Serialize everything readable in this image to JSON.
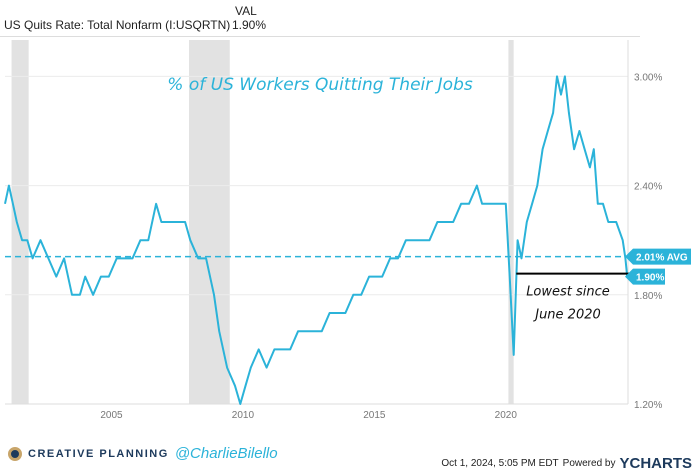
{
  "header": {
    "series_name": "US Quits Rate: Total Nonfarm (I:USQRTN)",
    "val_label": "VAL",
    "val": "1.90%"
  },
  "chart_data": {
    "type": "line",
    "title": "% of US Workers Quitting Their Jobs",
    "xlabel": "",
    "ylabel": "",
    "xlim": [
      2000.95,
      2024.65
    ],
    "ylim": [
      1.2,
      3.2
    ],
    "x_ticks": [
      2005,
      2010,
      2015,
      2020
    ],
    "x_tick_labels": [
      "2005",
      "2010",
      "2015",
      "2020"
    ],
    "y_ticks": [
      1.2,
      1.8,
      2.4,
      3.0
    ],
    "y_tick_labels": [
      "1.20%",
      "1.80%",
      "2.40%",
      "3.00%"
    ],
    "recessions": [
      [
        2001.2,
        2001.85
      ],
      [
        2007.95,
        2009.5
      ],
      [
        2020.1,
        2020.3
      ]
    ],
    "average": {
      "value": 2.01,
      "label": "2.01% AVG"
    },
    "last": {
      "value": 1.9,
      "label": "1.90%"
    },
    "annotation": {
      "line1": "Lowest since",
      "line2": "June 2020",
      "level": 1.9,
      "from": 2020.4
    },
    "color": "#2bb3d9",
    "series": [
      {
        "name": "US Quits Rate",
        "points": [
          [
            2000.95,
            2.3
          ],
          [
            2001.1,
            2.4
          ],
          [
            2001.25,
            2.3
          ],
          [
            2001.4,
            2.2
          ],
          [
            2001.6,
            2.1
          ],
          [
            2001.8,
            2.1
          ],
          [
            2002.0,
            2.0
          ],
          [
            2002.3,
            2.1
          ],
          [
            2002.6,
            2.0
          ],
          [
            2002.9,
            1.9
          ],
          [
            2003.2,
            2.0
          ],
          [
            2003.5,
            1.8
          ],
          [
            2003.8,
            1.8
          ],
          [
            2004.0,
            1.9
          ],
          [
            2004.3,
            1.8
          ],
          [
            2004.6,
            1.9
          ],
          [
            2004.9,
            1.9
          ],
          [
            2005.2,
            2.0
          ],
          [
            2005.5,
            2.0
          ],
          [
            2005.8,
            2.0
          ],
          [
            2006.1,
            2.1
          ],
          [
            2006.4,
            2.1
          ],
          [
            2006.7,
            2.3
          ],
          [
            2006.9,
            2.2
          ],
          [
            2007.2,
            2.2
          ],
          [
            2007.5,
            2.2
          ],
          [
            2007.8,
            2.2
          ],
          [
            2008.0,
            2.1
          ],
          [
            2008.3,
            2.0
          ],
          [
            2008.6,
            2.0
          ],
          [
            2008.9,
            1.8
          ],
          [
            2009.1,
            1.6
          ],
          [
            2009.4,
            1.4
          ],
          [
            2009.7,
            1.3
          ],
          [
            2009.9,
            1.2
          ],
          [
            2010.1,
            1.3
          ],
          [
            2010.3,
            1.4
          ],
          [
            2010.6,
            1.5
          ],
          [
            2010.9,
            1.4
          ],
          [
            2011.2,
            1.5
          ],
          [
            2011.5,
            1.5
          ],
          [
            2011.8,
            1.5
          ],
          [
            2012.1,
            1.6
          ],
          [
            2012.4,
            1.6
          ],
          [
            2012.7,
            1.6
          ],
          [
            2013.0,
            1.6
          ],
          [
            2013.3,
            1.7
          ],
          [
            2013.6,
            1.7
          ],
          [
            2013.9,
            1.7
          ],
          [
            2014.2,
            1.8
          ],
          [
            2014.5,
            1.8
          ],
          [
            2014.8,
            1.9
          ],
          [
            2015.0,
            1.9
          ],
          [
            2015.3,
            1.9
          ],
          [
            2015.6,
            2.0
          ],
          [
            2015.9,
            2.0
          ],
          [
            2016.2,
            2.1
          ],
          [
            2016.5,
            2.1
          ],
          [
            2016.8,
            2.1
          ],
          [
            2017.1,
            2.1
          ],
          [
            2017.4,
            2.2
          ],
          [
            2017.7,
            2.2
          ],
          [
            2018.0,
            2.2
          ],
          [
            2018.3,
            2.3
          ],
          [
            2018.6,
            2.3
          ],
          [
            2018.9,
            2.4
          ],
          [
            2019.1,
            2.3
          ],
          [
            2019.4,
            2.3
          ],
          [
            2019.7,
            2.3
          ],
          [
            2020.0,
            2.3
          ],
          [
            2020.15,
            1.9
          ],
          [
            2020.3,
            1.47
          ],
          [
            2020.45,
            2.1
          ],
          [
            2020.6,
            2.0
          ],
          [
            2020.8,
            2.2
          ],
          [
            2021.0,
            2.3
          ],
          [
            2021.2,
            2.4
          ],
          [
            2021.4,
            2.6
          ],
          [
            2021.6,
            2.7
          ],
          [
            2021.8,
            2.8
          ],
          [
            2021.95,
            3.0
          ],
          [
            2022.1,
            2.9
          ],
          [
            2022.25,
            3.0
          ],
          [
            2022.4,
            2.8
          ],
          [
            2022.6,
            2.6
          ],
          [
            2022.8,
            2.7
          ],
          [
            2023.0,
            2.6
          ],
          [
            2023.2,
            2.5
          ],
          [
            2023.35,
            2.6
          ],
          [
            2023.5,
            2.3
          ],
          [
            2023.7,
            2.3
          ],
          [
            2023.9,
            2.2
          ],
          [
            2024.2,
            2.2
          ],
          [
            2024.45,
            2.1
          ],
          [
            2024.55,
            2.0
          ],
          [
            2024.62,
            1.9
          ]
        ]
      }
    ]
  },
  "footer": {
    "brand": "CREATIVE PLANNING",
    "handle": "@CharlieBilello",
    "timestamp": "Oct 1, 2024, 5:05 PM EDT",
    "powered_by": "Powered by",
    "provider": "YCHARTS"
  }
}
